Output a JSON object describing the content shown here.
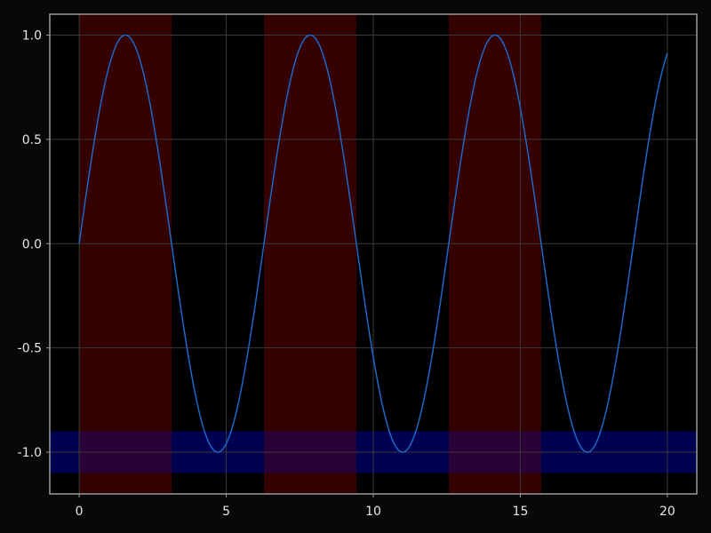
{
  "chart_data": {
    "type": "line",
    "title": "",
    "xlabel": "",
    "ylabel": "",
    "xlim": [
      -1,
      21
    ],
    "ylim": [
      -1.2,
      1.1
    ],
    "x_ticks": [
      {
        "value": 0,
        "label": "0"
      },
      {
        "value": 5,
        "label": "5"
      },
      {
        "value": 10,
        "label": "10"
      },
      {
        "value": 15,
        "label": "15"
      },
      {
        "value": 20,
        "label": "20"
      }
    ],
    "y_ticks": [
      {
        "value": 1.0,
        "label": "1.0"
      },
      {
        "value": 0.5,
        "label": "0.5"
      },
      {
        "value": 0.0,
        "label": "0.0"
      },
      {
        "value": -0.5,
        "label": "-0.5"
      },
      {
        "value": -1.0,
        "label": "-1.0"
      }
    ],
    "grid": true,
    "colors": {
      "background": "#000000",
      "page": "#080808",
      "frame": "#9a9a9a",
      "grid": "#3a3a3a",
      "line": "#1c68c6",
      "vspan": "#340000",
      "hspan": "#000050",
      "overlap": "#2a0038"
    },
    "vspans": [
      {
        "x0": 0,
        "x1": 3.14159
      },
      {
        "x0": 6.28319,
        "x1": 9.42478
      },
      {
        "x0": 12.56637,
        "x1": 15.70796
      }
    ],
    "hspans": [
      {
        "y0": -1.1,
        "y1": -0.9
      }
    ],
    "series": [
      {
        "function": "sin",
        "x": [
          0,
          0.25,
          0.5,
          0.75,
          1,
          1.25,
          1.5,
          1.75,
          2,
          2.25,
          2.5,
          2.75,
          3,
          3.25,
          3.5,
          3.75,
          4,
          4.25,
          4.5,
          4.75,
          5,
          5.25,
          5.5,
          5.75,
          6,
          6.25,
          6.5,
          6.75,
          7,
          7.25,
          7.5,
          7.75,
          8,
          8.25,
          8.5,
          8.75,
          9,
          9.25,
          9.5,
          9.75,
          10,
          10.25,
          10.5,
          10.75,
          11,
          11.25,
          11.5,
          11.75,
          12,
          12.25,
          12.5,
          12.75,
          13,
          13.25,
          13.5,
          13.75,
          14,
          14.25,
          14.5,
          14.75,
          15,
          15.25,
          15.5,
          15.75,
          16,
          16.25,
          16.5,
          16.75,
          17,
          17.25,
          17.5,
          17.75,
          18,
          18.25,
          18.5,
          18.75,
          19,
          19.25,
          19.5,
          19.75,
          20
        ],
        "y": [
          0,
          0.247,
          0.479,
          0.682,
          0.841,
          0.949,
          0.997,
          0.984,
          0.909,
          0.778,
          0.598,
          0.382,
          0.141,
          -0.108,
          -0.351,
          -0.572,
          -0.757,
          -0.895,
          -0.978,
          -0.999,
          -0.959,
          -0.859,
          -0.706,
          -0.508,
          -0.279,
          -0.033,
          0.215,
          0.45,
          0.657,
          0.823,
          0.938,
          0.994,
          0.989,
          0.925,
          0.798,
          0.625,
          0.412,
          0.174,
          -0.075,
          -0.32,
          -0.544,
          -0.735,
          -0.88,
          -0.97,
          -1.0,
          -0.97,
          -0.875,
          -0.727,
          -0.537,
          -0.31,
          -0.066,
          0.182,
          0.42,
          0.631,
          0.804,
          0.927,
          0.991,
          0.992,
          0.935,
          0.82,
          0.65,
          0.441,
          0.206,
          -0.043,
          -0.288,
          -0.516,
          -0.712,
          -0.864,
          -0.961,
          -0.999,
          -0.978,
          -0.894,
          -0.751,
          -0.565,
          -0.338,
          -0.099,
          0.15,
          0.39,
          0.604,
          0.784,
          0.913
        ]
      }
    ]
  }
}
